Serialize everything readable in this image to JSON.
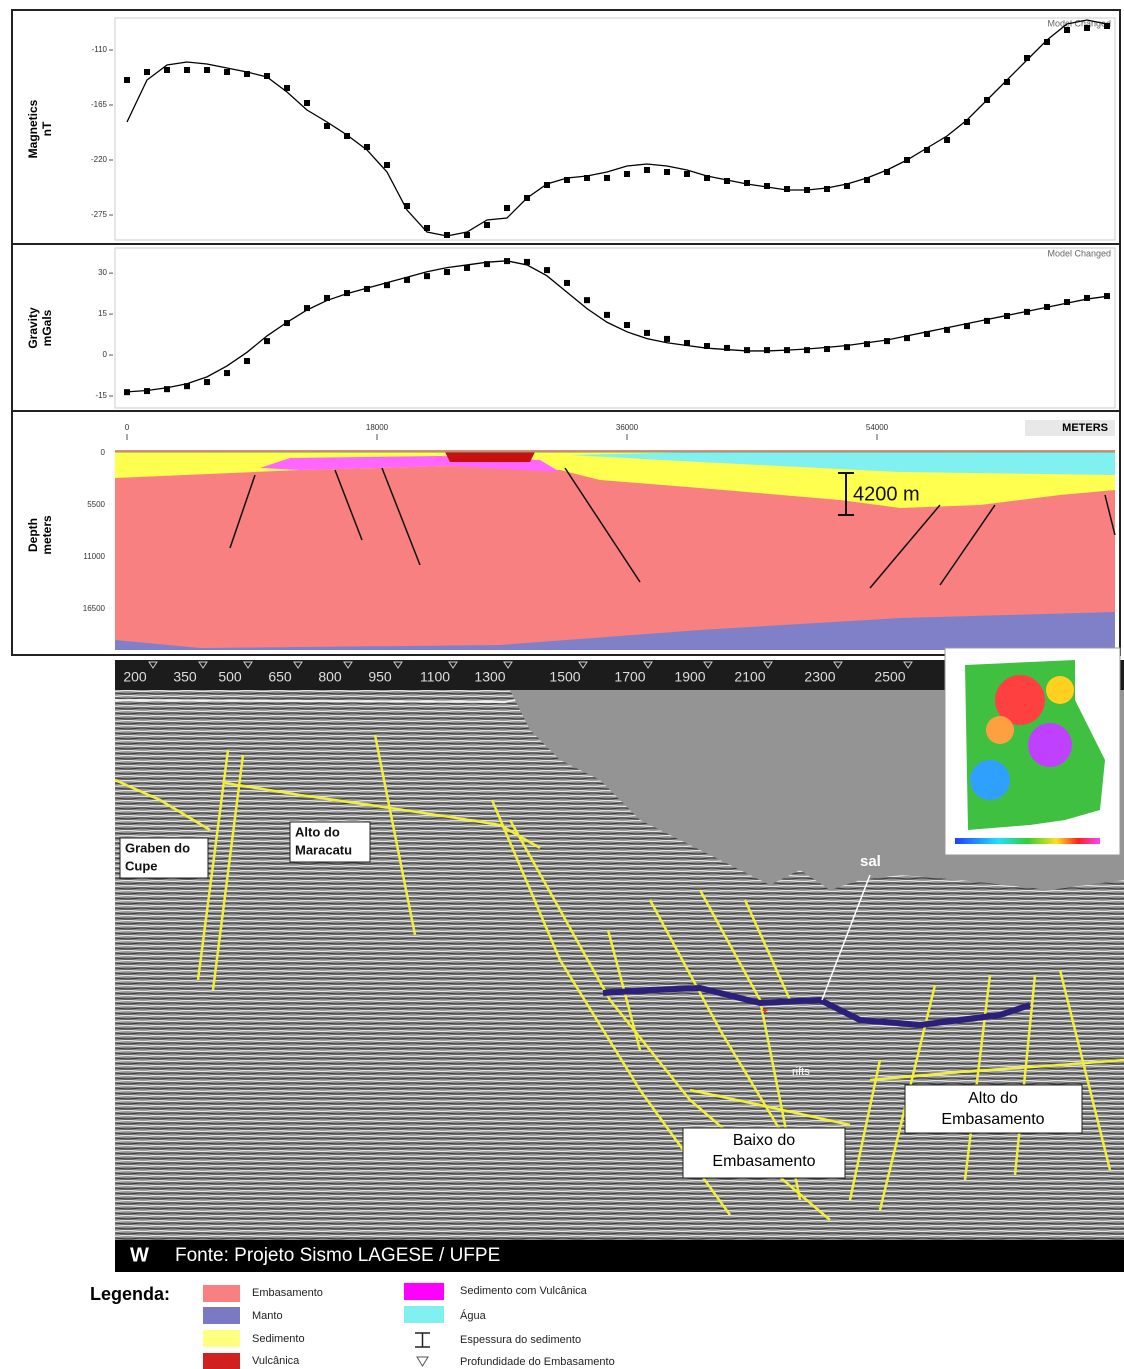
{
  "chart_data": [
    {
      "type": "line",
      "ylabel": [
        "Magnetics",
        "nT"
      ],
      "annotation": "Model Changed",
      "xlim": [
        -864,
        71136
      ],
      "ylim": [
        -300,
        -78
      ],
      "yticks": [
        -110,
        -165,
        -220,
        -275
      ],
      "x": [
        0,
        1440,
        2880,
        4320,
        5760,
        7200,
        8640,
        10080,
        11520,
        12960,
        14400,
        15840,
        17280,
        18720,
        20160,
        21600,
        23040,
        24480,
        25920,
        27360,
        28800,
        30240,
        31680,
        33120,
        34560,
        36000,
        37440,
        38880,
        40320,
        41760,
        43200,
        44640,
        46080,
        47520,
        48960,
        50400,
        51840,
        53280,
        54720,
        56160,
        57600,
        59040,
        60480,
        61920,
        63360,
        64800,
        66240,
        67680,
        69120,
        70560
      ],
      "series": [
        {
          "mode": "markers",
          "color": "#000000",
          "values": [
            -140,
            -132,
            -130,
            -130,
            -130,
            -132,
            -134,
            -136,
            -148,
            -163,
            -186,
            -196,
            -207,
            -225,
            -266,
            -288,
            -295,
            -295,
            -285,
            -268,
            -258,
            -245,
            -240,
            -238,
            -238,
            -234,
            -230,
            -232,
            -234,
            -238,
            -241,
            -243,
            -246,
            -249,
            -250,
            -249,
            -246,
            -240,
            -232,
            -220,
            -210,
            -200,
            -182,
            -160,
            -142,
            -118,
            -102,
            -90,
            -88,
            -86
          ]
        },
        {
          "mode": "lines",
          "color": "#000000",
          "values": [
            -182,
            -140,
            -125,
            -122,
            -124,
            -128,
            -132,
            -137,
            -152,
            -170,
            -182,
            -195,
            -210,
            -232,
            -270,
            -292,
            -296,
            -292,
            -280,
            -278,
            -258,
            -244,
            -238,
            -236,
            -232,
            -226,
            -224,
            -226,
            -230,
            -236,
            -240,
            -244,
            -247,
            -250,
            -250,
            -248,
            -244,
            -238,
            -230,
            -220,
            -208,
            -196,
            -180,
            -160,
            -140,
            -120,
            -100,
            -84,
            -80,
            -84
          ]
        }
      ]
    },
    {
      "type": "line",
      "ylabel": [
        "Gravity",
        "mGals"
      ],
      "annotation": "Model Changed",
      "xlim": [
        -864,
        71136
      ],
      "ylim": [
        -19.4,
        39.2
      ],
      "yticks": [
        30,
        15,
        0,
        -15
      ],
      "x": [
        0,
        1440,
        2880,
        4320,
        5760,
        7200,
        8640,
        10080,
        11520,
        12960,
        14400,
        15840,
        17280,
        18720,
        20160,
        21600,
        23040,
        24480,
        25920,
        27360,
        28800,
        30240,
        31680,
        33120,
        34560,
        36000,
        37440,
        38880,
        40320,
        41760,
        43200,
        44640,
        46080,
        47520,
        48960,
        50400,
        51840,
        53280,
        54720,
        56160,
        57600,
        59040,
        60480,
        61920,
        63360,
        64800,
        66240,
        67680,
        69120,
        70560
      ],
      "series": [
        {
          "mode": "markers",
          "color": "#000000",
          "values": [
            -13.6,
            -13.2,
            -12.5,
            -11.4,
            -9.9,
            -6.6,
            -2.2,
            5.1,
            11.7,
            17.2,
            20.9,
            22.7,
            24.2,
            25.6,
            27.5,
            28.9,
            30.4,
            31.9,
            33.3,
            34.4,
            34.1,
            31.1,
            26.4,
            20.1,
            14.7,
            11.0,
            8.1,
            5.9,
            4.4,
            3.3,
            2.6,
            1.8,
            1.8,
            1.8,
            1.8,
            2.2,
            2.9,
            4.0,
            5.1,
            6.2,
            7.7,
            9.2,
            10.6,
            12.5,
            14.3,
            15.8,
            17.6,
            19.4,
            20.9,
            21.6
          ]
        },
        {
          "mode": "lines",
          "color": "#000000",
          "values": [
            -13.5,
            -13,
            -12,
            -10.5,
            -8,
            -4,
            1,
            7,
            12,
            16.5,
            20,
            22.5,
            24.5,
            26.5,
            28.5,
            30.5,
            32,
            33,
            34,
            34.5,
            33,
            29,
            23,
            17,
            12,
            8.5,
            6,
            4.5,
            3.5,
            2.5,
            2,
            1.5,
            1.5,
            1.8,
            2.2,
            2.8,
            3.5,
            4.5,
            5.5,
            7,
            8.5,
            10,
            11.5,
            13,
            14.5,
            16,
            17.5,
            19,
            20.5,
            21.5
          ]
        }
      ]
    }
  ],
  "depth_section": {
    "ylabel": [
      "Depth",
      "meters"
    ],
    "x_ticks": [
      "0",
      "18000",
      "36000",
      "54000"
    ],
    "x_unit": "METERS",
    "y_ticks": [
      "0",
      "5500",
      "11000",
      "16500"
    ],
    "thickness_label": "4200 m"
  },
  "seismic": {
    "shotpoints": [
      200,
      350,
      500,
      650,
      800,
      950,
      1100,
      1300,
      1500,
      1700,
      1900,
      2100,
      2300,
      2500
    ],
    "graben": [
      "Graben do",
      "Cupe"
    ],
    "alto_maracatu": [
      "Alto do",
      "Maracatu"
    ],
    "sal": "sal",
    "rifts": "rifts",
    "baixo": [
      "Baixo do",
      "Embasamento"
    ],
    "alto_emb": [
      "Alto do",
      "Embasamento"
    ],
    "direction": "W",
    "source": "Fonte: Projeto Sismo LAGESE / UFPE"
  },
  "legend": {
    "title": "Legenda:",
    "items": [
      "Embasamento",
      "Manto",
      "Sedimento",
      "Vulcânica",
      "Sedimento com Vulcânica",
      "Água",
      "Espessura do sedimento",
      "Profundidade do Embasamento"
    ]
  }
}
